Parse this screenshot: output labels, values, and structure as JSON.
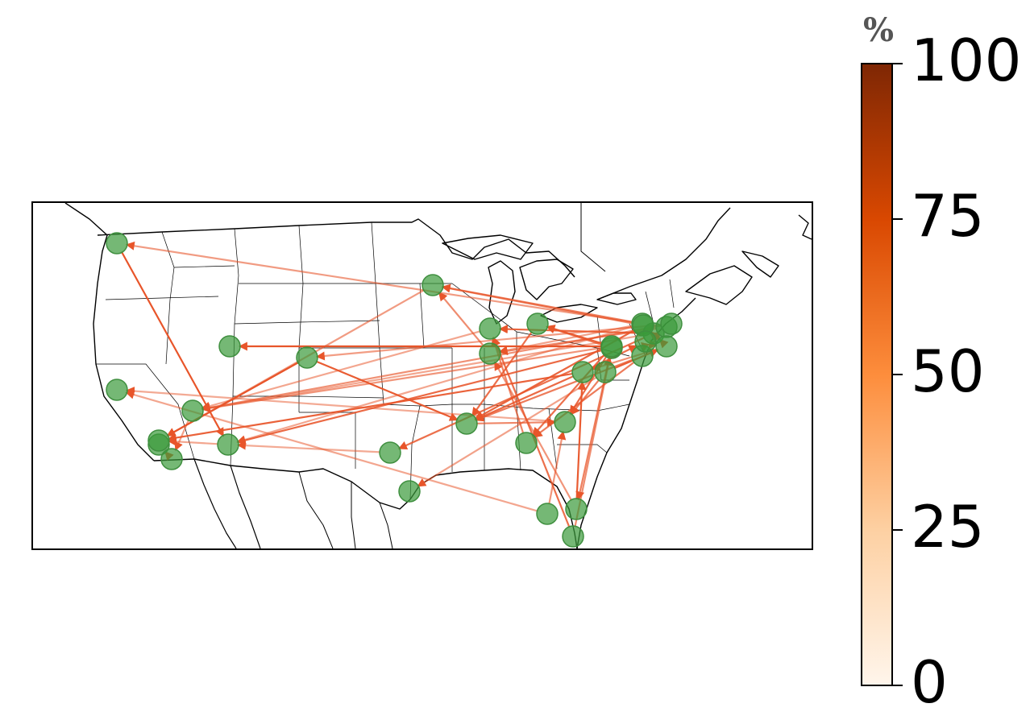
{
  "colorbar": {
    "unit": "%",
    "ticks": [
      "0",
      "25",
      "50",
      "75",
      "100"
    ],
    "colors": [
      "#fff5eb",
      "#fdd0a2",
      "#fd8d3c",
      "#d94801",
      "#7f2704"
    ]
  },
  "map": {
    "region": "contiguous United States with borders of Canada and Mexico",
    "node_color": "#3a9a3a",
    "flow_color": "#e8552a",
    "nodes": [
      {
        "id": "n1"
      },
      {
        "id": "n2"
      },
      {
        "id": "n3"
      },
      {
        "id": "n4"
      },
      {
        "id": "n5"
      },
      {
        "id": "n6"
      },
      {
        "id": "n7"
      },
      {
        "id": "n8"
      },
      {
        "id": "n9"
      },
      {
        "id": "n10"
      },
      {
        "id": "n11"
      },
      {
        "id": "n12"
      },
      {
        "id": "n13"
      },
      {
        "id": "n14"
      },
      {
        "id": "n15"
      },
      {
        "id": "n16"
      },
      {
        "id": "n17"
      },
      {
        "id": "n18"
      },
      {
        "id": "n19"
      },
      {
        "id": "n20"
      },
      {
        "id": "n21"
      },
      {
        "id": "n22"
      },
      {
        "id": "n23"
      },
      {
        "id": "n24"
      },
      {
        "id": "n25"
      },
      {
        "id": "n26"
      },
      {
        "id": "n27"
      },
      {
        "id": "n28"
      },
      {
        "id": "n29"
      },
      {
        "id": "n30"
      },
      {
        "id": "n31"
      },
      {
        "id": "n32"
      },
      {
        "id": "n33"
      }
    ],
    "flows": [
      {
        "from": 0,
        "to": 6,
        "pct": 70
      },
      {
        "from": 21,
        "to": 0,
        "pct": 35
      },
      {
        "from": 8,
        "to": 14,
        "pct": 65
      },
      {
        "from": 8,
        "to": 4,
        "pct": 68
      },
      {
        "from": 21,
        "to": 6,
        "pct": 30
      },
      {
        "from": 28,
        "to": 5,
        "pct": 38
      },
      {
        "from": 26,
        "to": 4,
        "pct": 62
      },
      {
        "from": 28,
        "to": 7,
        "pct": 70
      },
      {
        "from": 30,
        "to": 5,
        "pct": 40
      },
      {
        "from": 25,
        "to": 6,
        "pct": 58
      },
      {
        "from": 13,
        "to": 11,
        "pct": 42
      },
      {
        "from": 21,
        "to": 11,
        "pct": 48
      },
      {
        "from": 20,
        "to": 12,
        "pct": 55
      },
      {
        "from": 22,
        "to": 12,
        "pct": 60
      },
      {
        "from": 24,
        "to": 15,
        "pct": 50
      },
      {
        "from": 24,
        "to": 31,
        "pct": 72
      },
      {
        "from": 25,
        "to": 16,
        "pct": 58
      },
      {
        "from": 29,
        "to": 14,
        "pct": 60
      },
      {
        "from": 19,
        "to": 26,
        "pct": 65
      },
      {
        "from": 28,
        "to": 17,
        "pct": 60
      },
      {
        "from": 23,
        "to": 24,
        "pct": 52
      },
      {
        "from": 31,
        "to": 26,
        "pct": 40
      },
      {
        "from": 27,
        "to": 31,
        "pct": 62
      },
      {
        "from": 26,
        "to": 14,
        "pct": 58
      },
      {
        "from": 22,
        "to": 31,
        "pct": 50
      },
      {
        "from": 24,
        "to": 32,
        "pct": 70
      },
      {
        "from": 20,
        "to": 25,
        "pct": 42
      },
      {
        "from": 17,
        "to": 14,
        "pct": 55
      },
      {
        "from": 5,
        "to": 2,
        "pct": 32
      },
      {
        "from": 12,
        "to": 5,
        "pct": 30
      },
      {
        "from": 11,
        "to": 4,
        "pct": 35
      },
      {
        "from": 18,
        "to": 3,
        "pct": 30
      },
      {
        "from": 26,
        "to": 32,
        "pct": 55
      },
      {
        "from": 31,
        "to": 29,
        "pct": 40
      },
      {
        "from": 28,
        "to": 19,
        "pct": 48
      },
      {
        "from": 22,
        "to": 9,
        "pct": 55
      },
      {
        "from": 23,
        "to": 13,
        "pct": 40
      },
      {
        "from": 19,
        "to": 13,
        "pct": 38
      },
      {
        "from": 16,
        "to": 3,
        "pct": 28
      },
      {
        "from": 22,
        "to": 5,
        "pct": 30
      },
      {
        "from": 27,
        "to": 10,
        "pct": 32
      },
      {
        "from": 2,
        "to": 1,
        "pct": 55
      },
      {
        "from": 6,
        "to": 4,
        "pct": 30
      },
      {
        "from": 15,
        "to": 12,
        "pct": 45
      },
      {
        "from": 29,
        "to": 11,
        "pct": 42
      },
      {
        "from": 24,
        "to": 14,
        "pct": 50
      },
      {
        "from": 28,
        "to": 15,
        "pct": 55
      },
      {
        "from": 21,
        "to": 13,
        "pct": 32
      },
      {
        "from": 31,
        "to": 22,
        "pct": 45
      },
      {
        "from": 32,
        "to": 23,
        "pct": 40
      },
      {
        "from": 27,
        "to": 16,
        "pct": 48
      },
      {
        "from": 25,
        "to": 17,
        "pct": 50
      },
      {
        "from": 30,
        "to": 8,
        "pct": 34
      },
      {
        "from": 9,
        "to": 6,
        "pct": 28
      },
      {
        "from": 14,
        "to": 16,
        "pct": 45
      },
      {
        "from": 18,
        "to": 16,
        "pct": 38
      }
    ]
  }
}
